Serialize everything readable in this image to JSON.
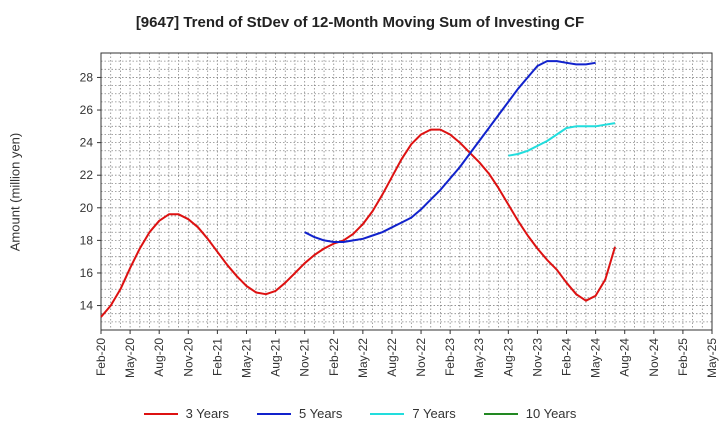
{
  "chart_data": {
    "type": "line",
    "title": "[9647]  Trend of StDev of 12-Month Moving Sum of Investing CF",
    "xlabel": "",
    "ylabel": "Amount (million yen)",
    "ylim": [
      12.5,
      29.5
    ],
    "yticks": [
      14,
      16,
      18,
      20,
      22,
      24,
      26,
      28
    ],
    "xticks": [
      "Feb-20",
      "May-20",
      "Aug-20",
      "Nov-20",
      "Feb-21",
      "May-21",
      "Aug-21",
      "Nov-21",
      "Feb-22",
      "May-22",
      "Aug-22",
      "Nov-22",
      "Feb-23",
      "May-23",
      "Aug-23",
      "Nov-23",
      "Feb-24",
      "May-24",
      "Aug-24",
      "Nov-24",
      "Feb-25",
      "May-25"
    ],
    "grid": true,
    "legend_position": "bottom",
    "series": [
      {
        "name": "3 Years",
        "color": "#dd1111",
        "start": "Feb-20",
        "values": [
          13.3,
          14.0,
          15.0,
          16.3,
          17.5,
          18.5,
          19.2,
          19.6,
          19.6,
          19.3,
          18.8,
          18.1,
          17.3,
          16.5,
          15.8,
          15.2,
          14.8,
          14.7,
          14.9,
          15.4,
          16.0,
          16.6,
          17.1,
          17.5,
          17.8,
          18.0,
          18.4,
          19.0,
          19.8,
          20.8,
          21.9,
          23.0,
          23.9,
          24.5,
          24.8,
          24.8,
          24.5,
          24.0,
          23.4,
          22.8,
          22.1,
          21.2,
          20.2,
          19.2,
          18.3,
          17.5,
          16.8,
          16.2,
          15.4,
          14.7,
          14.3,
          14.6,
          15.6,
          17.6
        ]
      },
      {
        "name": "5 Years",
        "color": "#1122cc",
        "start": "Feb-20",
        "values": [
          null,
          null,
          null,
          null,
          null,
          null,
          null,
          null,
          null,
          null,
          null,
          null,
          null,
          null,
          null,
          null,
          null,
          null,
          null,
          null,
          null,
          18.5,
          18.2,
          18.0,
          17.9,
          17.9,
          18.0,
          18.1,
          18.3,
          18.5,
          18.8,
          19.1,
          19.4,
          19.9,
          20.5,
          21.1,
          21.8,
          22.5,
          23.3,
          24.1,
          24.9,
          25.7,
          26.5,
          27.3,
          28.0,
          28.7,
          29.0,
          29.0,
          28.9,
          28.8,
          28.8,
          28.9
        ]
      },
      {
        "name": "7 Years",
        "color": "#22dddd",
        "start": "Feb-20",
        "values": [
          null,
          null,
          null,
          null,
          null,
          null,
          null,
          null,
          null,
          null,
          null,
          null,
          null,
          null,
          null,
          null,
          null,
          null,
          null,
          null,
          null,
          null,
          null,
          null,
          null,
          null,
          null,
          null,
          null,
          null,
          null,
          null,
          null,
          null,
          null,
          null,
          null,
          null,
          null,
          null,
          null,
          null,
          23.2,
          23.3,
          23.5,
          23.8,
          24.1,
          24.5,
          24.9,
          25.0,
          25.0,
          25.0,
          25.1,
          25.2
        ]
      },
      {
        "name": "10 Years",
        "color": "#228822",
        "start": "Feb-20",
        "values": []
      }
    ]
  }
}
